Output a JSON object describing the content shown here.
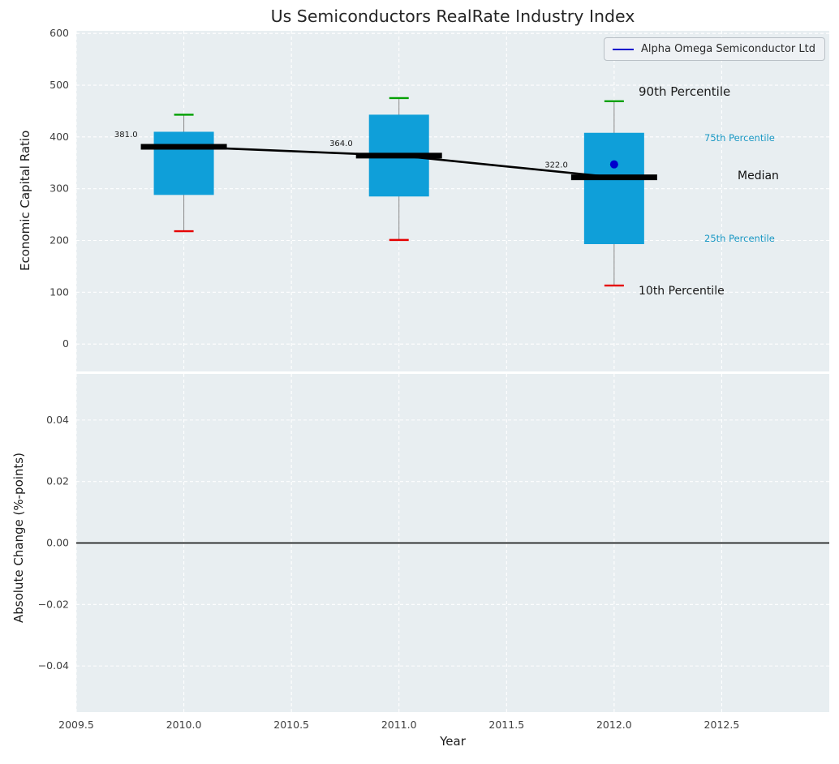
{
  "title": "Us Semiconductors RealRate Industry Index",
  "xlabel": "Year",
  "legend": {
    "label": "Alpha Omega Semiconductor Ltd"
  },
  "annotations": {
    "p90": "90th Percentile",
    "p75": "75th Percentile",
    "median": "Median",
    "p25": "25th Percentile",
    "p10": "10th Percentile"
  },
  "colors": {
    "axes_bg": "#e8eef1",
    "grid": "#ffffff",
    "box_fill": "#0f9fd9",
    "p90_cap": "#00a000",
    "p10_cap": "#e50000",
    "median_line": "#000000",
    "whisker": "#8a8a8a",
    "company": "#0000cc",
    "tick": "#404040",
    "annotation_teal": "#1a98c4"
  },
  "chart_data": [
    {
      "type": "boxplot",
      "title": "Us Semiconductors RealRate Industry Index",
      "ylabel": "Economic Capital Ratio",
      "xlim": [
        2009.5,
        2013.0
      ],
      "ylim": [
        -53,
        605
      ],
      "yticks": [
        0,
        100,
        200,
        300,
        400,
        500,
        600
      ],
      "xticks": [
        2009.5,
        2010.0,
        2010.5,
        2011.0,
        2011.5,
        2012.0,
        2012.5
      ],
      "grid": true,
      "legend_position": "upper right",
      "years": [
        2010,
        2011,
        2012
      ],
      "p10": [
        218,
        201,
        113
      ],
      "q25": [
        288,
        285,
        193
      ],
      "median": [
        381,
        364,
        322
      ],
      "q75": [
        410,
        443,
        408
      ],
      "p90": [
        443,
        475,
        469
      ],
      "median_labels": [
        "381.0",
        "364.0",
        "322.0"
      ],
      "company_series": {
        "name": "Alpha Omega Semiconductor Ltd",
        "points": [
          {
            "x": 2012,
            "y": 347
          }
        ]
      }
    },
    {
      "type": "bar",
      "ylabel": "Absolute Change (%-points)",
      "xlabel": "Year",
      "xlim": [
        2009.5,
        2013.0
      ],
      "ylim": [
        -0.055,
        0.055
      ],
      "yticks": [
        -0.04,
        -0.02,
        0.0,
        0.02,
        0.04
      ],
      "xticks": [
        2009.5,
        2010.0,
        2010.5,
        2011.0,
        2011.5,
        2012.0,
        2012.5
      ],
      "categories": [],
      "values": [],
      "zero_line": 0.0,
      "grid": true
    }
  ]
}
